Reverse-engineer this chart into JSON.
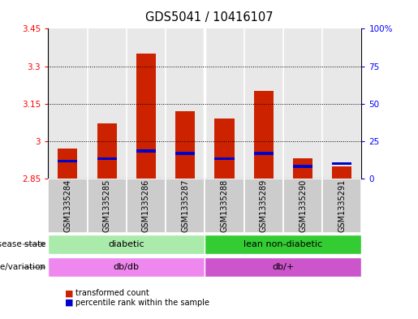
{
  "title": "GDS5041 / 10416107",
  "samples": [
    "GSM1335284",
    "GSM1335285",
    "GSM1335286",
    "GSM1335287",
    "GSM1335288",
    "GSM1335289",
    "GSM1335290",
    "GSM1335291"
  ],
  "red_values": [
    2.97,
    3.07,
    3.35,
    3.12,
    3.09,
    3.2,
    2.93,
    2.9
  ],
  "blue_values": [
    2.92,
    2.93,
    2.96,
    2.95,
    2.93,
    2.95,
    2.9,
    2.91
  ],
  "ymin": 2.85,
  "ymax": 3.45,
  "yticks": [
    2.85,
    3.0,
    3.15,
    3.3,
    3.45
  ],
  "ytick_labels": [
    "2.85",
    "3",
    "3.15",
    "3.3",
    "3.45"
  ],
  "y2ticks": [
    0,
    25,
    50,
    75,
    100
  ],
  "y2tick_labels": [
    "0",
    "25",
    "50",
    "75",
    "100%"
  ],
  "disease_state_groups": [
    {
      "label": "diabetic",
      "start": 0,
      "end": 4,
      "color": "#AAEAAA"
    },
    {
      "label": "lean non-diabetic",
      "start": 4,
      "end": 8,
      "color": "#33CC33"
    }
  ],
  "genotype_groups": [
    {
      "label": "db/db",
      "start": 0,
      "end": 4,
      "color": "#EE88EE"
    },
    {
      "label": "db/+",
      "start": 4,
      "end": 8,
      "color": "#CC55CC"
    }
  ],
  "bar_color": "#CC2200",
  "blue_color": "#0000CC",
  "bar_width": 0.5,
  "legend_items": [
    {
      "label": "transformed count",
      "color": "#CC2200"
    },
    {
      "label": "percentile rank within the sample",
      "color": "#0000CC"
    }
  ],
  "label_fontsize": 8,
  "tick_fontsize": 7.5,
  "title_fontsize": 10.5,
  "sample_fontsize": 7
}
